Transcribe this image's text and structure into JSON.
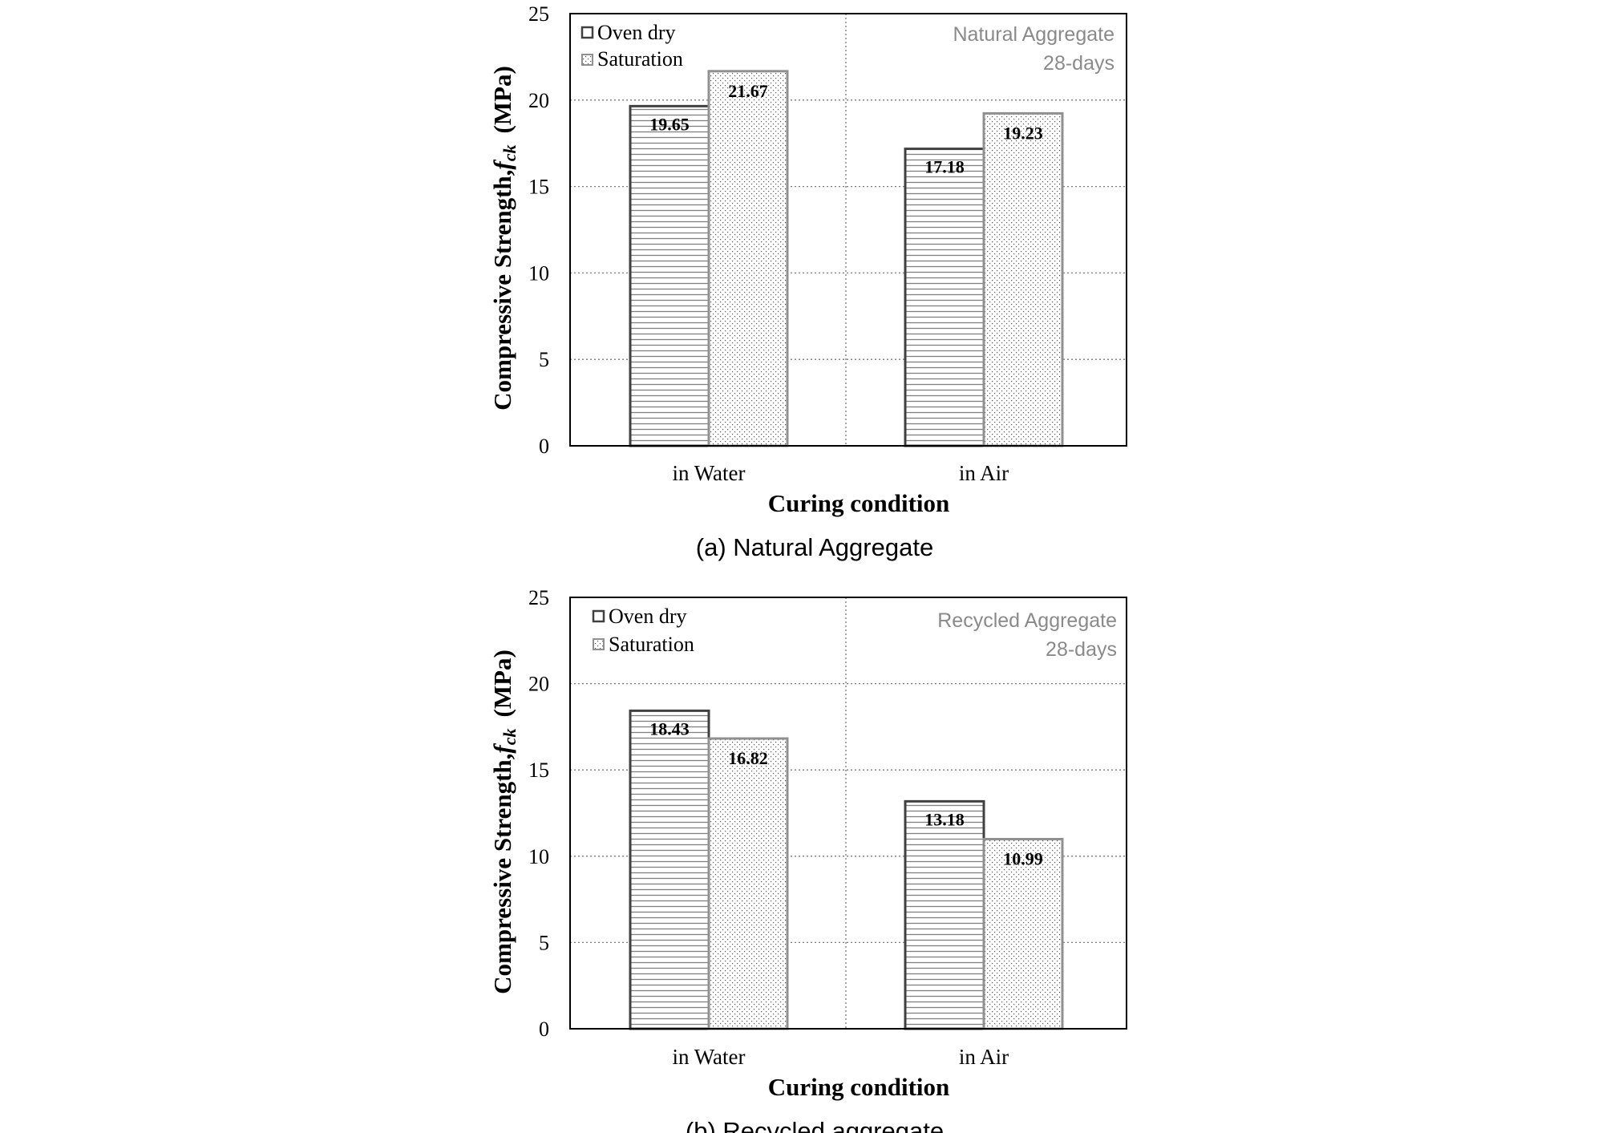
{
  "chart_data": [
    {
      "type": "bar",
      "categories": [
        "in Water",
        "in Air"
      ],
      "series": [
        {
          "name": "Oven dry",
          "values": [
            19.65,
            17.18
          ]
        },
        {
          "name": "Saturation",
          "values": [
            21.67,
            19.23
          ]
        }
      ],
      "data_labels": [
        [
          "19.65",
          "17.18"
        ],
        [
          "21.67",
          "19.23"
        ]
      ],
      "xlabel": "Curing condition",
      "ylabel": "Compressive Strength, f_ck (MPa)",
      "ylabel_main": "Compressive Strength,",
      "ylabel_sym": "f",
      "ylabel_sub": "ck",
      "ylabel_unit": "(MPa)",
      "ylim": [
        0,
        25
      ],
      "yticks": [
        "0",
        "5",
        "10",
        "15",
        "20",
        "25"
      ],
      "annotation": [
        "Natural Aggregate",
        "28-days"
      ],
      "caption": "(a) Natural Aggregate",
      "legend_position": "top-left",
      "grid": "dotted horizontal"
    },
    {
      "type": "bar",
      "categories": [
        "in Water",
        "in Air"
      ],
      "series": [
        {
          "name": "Oven dry",
          "values": [
            18.43,
            13.18
          ]
        },
        {
          "name": "Saturation",
          "values": [
            16.82,
            10.99
          ]
        }
      ],
      "data_labels": [
        [
          "18.43",
          "13.18"
        ],
        [
          "16.82",
          "10.99"
        ]
      ],
      "xlabel": "Curing condition",
      "ylabel": "Compressive Strength, f_ck (MPa)",
      "ylabel_main": "Compressive Strength,",
      "ylabel_sym": "f",
      "ylabel_sub": "ck",
      "ylabel_unit": "(MPa)",
      "ylim": [
        0,
        25
      ],
      "yticks": [
        "0",
        "5",
        "10",
        "15",
        "20",
        "25"
      ],
      "annotation": [
        "Recycled Aggregate",
        "28-days"
      ],
      "caption": "(b) Recycled aggregate",
      "legend_position": "top-left",
      "grid": "dotted horizontal"
    }
  ],
  "colors": {
    "oven_dry_stroke": "#404040",
    "saturation_stroke": "#909090",
    "stripe": "#808080",
    "dots": "#555555",
    "grid": "#7a7a7a",
    "annotation_text": "#8a8a8a"
  }
}
